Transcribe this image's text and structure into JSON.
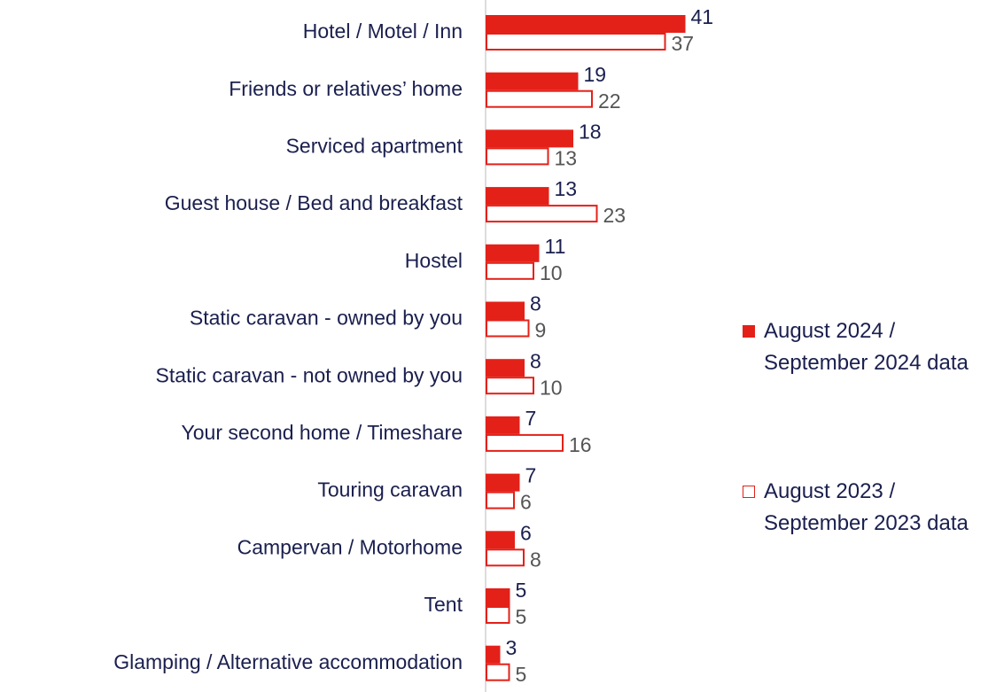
{
  "chart_data": {
    "type": "bar",
    "orientation": "horizontal",
    "categories": [
      "Hotel / Motel / Inn",
      "Friends or relatives’ home",
      "Serviced apartment",
      "Guest house / Bed and breakfast",
      "Hostel",
      "Static caravan - owned by you",
      "Static caravan - not owned by you",
      "Your second home / Timeshare",
      "Touring caravan",
      "Campervan / Motorhome",
      "Tent",
      "Glamping / Alternative accommodation"
    ],
    "series": [
      {
        "name": "August 2024 / September 2024 data",
        "color": "#e32119",
        "fill": "solid",
        "values": [
          41,
          19,
          18,
          13,
          11,
          8,
          8,
          7,
          7,
          6,
          5,
          3
        ]
      },
      {
        "name": "August 2023 / September 2023 data",
        "color": "#e32119",
        "fill": "outline",
        "values": [
          37,
          22,
          13,
          23,
          10,
          9,
          10,
          16,
          6,
          8,
          5,
          5
        ]
      }
    ],
    "xlim": [
      0,
      100
    ],
    "legend": "right"
  }
}
